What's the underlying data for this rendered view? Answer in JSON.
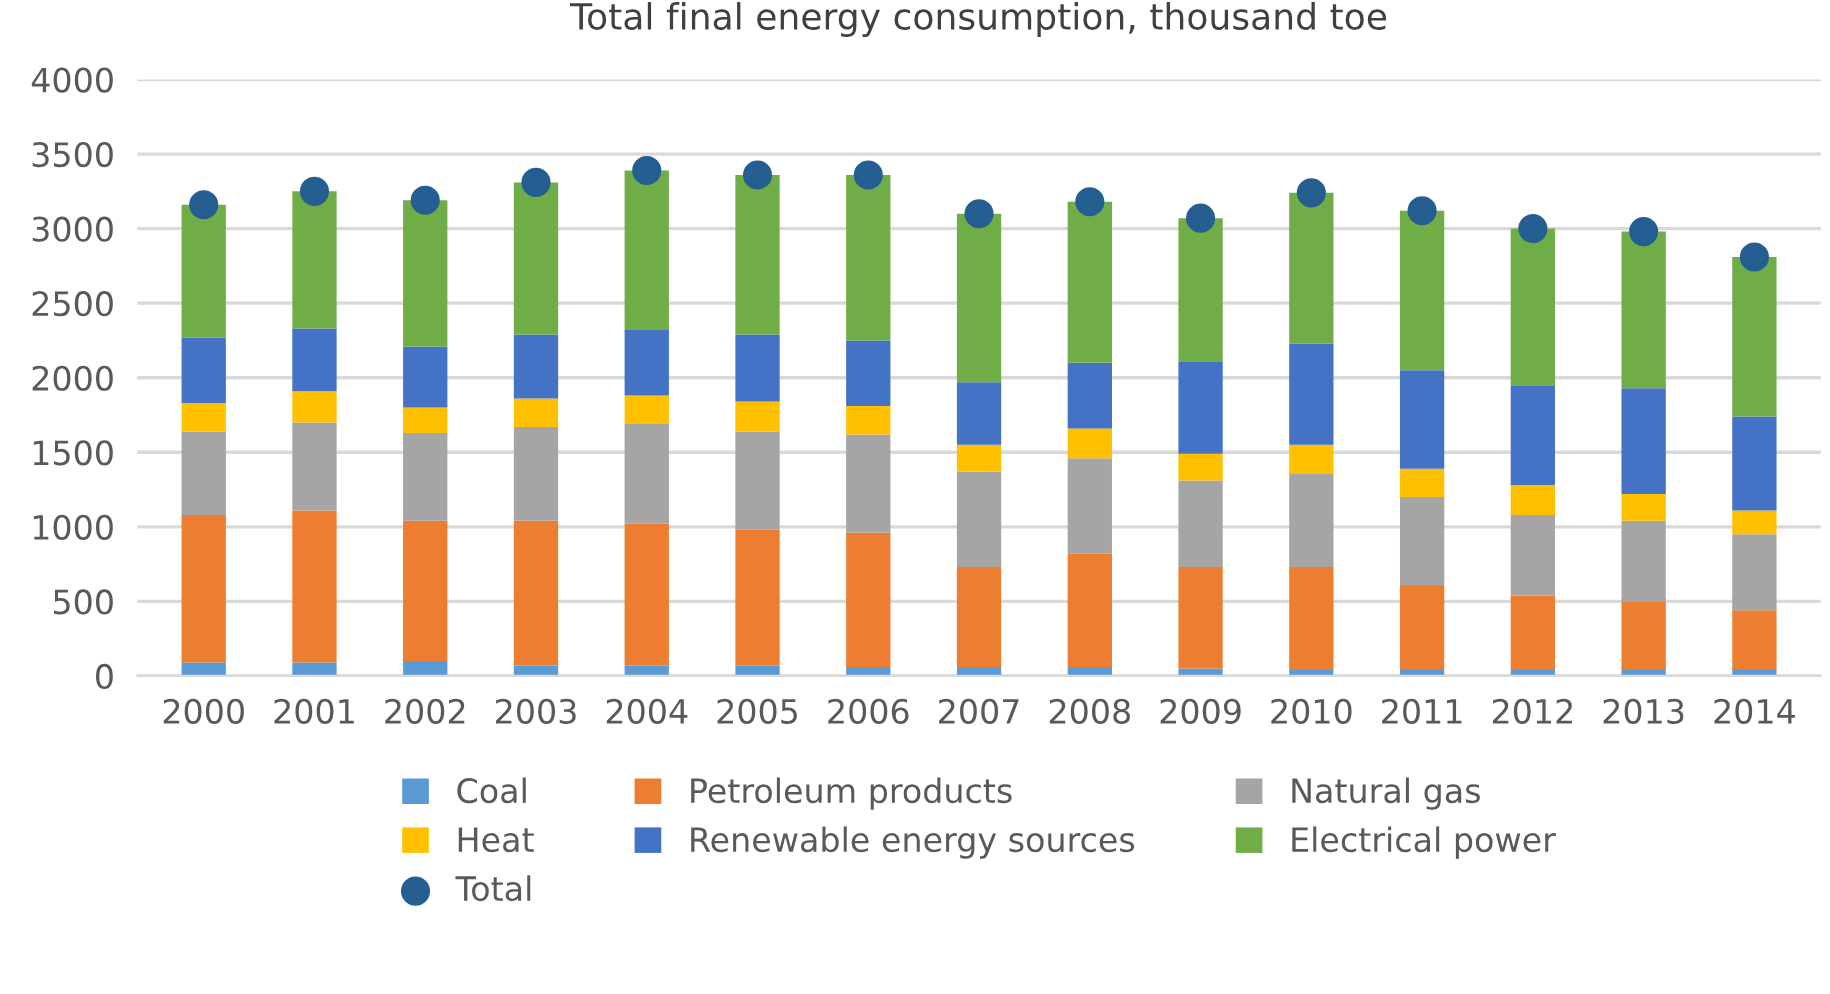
{
  "chart_data": {
    "type": "bar",
    "title": "Total final energy consumption, thousand toe",
    "stacked": true,
    "categories": [
      "2000",
      "2001",
      "2002",
      "2003",
      "2004",
      "2005",
      "2006",
      "2007",
      "2008",
      "2009",
      "2010",
      "2011",
      "2012",
      "2013",
      "2014"
    ],
    "series": [
      {
        "name": "Coal",
        "color": "#5b9bd5",
        "values": [
          90,
          90,
          100,
          70,
          70,
          70,
          60,
          60,
          60,
          50,
          40,
          40,
          40,
          40,
          40
        ]
      },
      {
        "name": "Petroleum products",
        "color": "#ed7d31",
        "values": [
          990,
          1020,
          940,
          970,
          950,
          910,
          900,
          670,
          760,
          680,
          690,
          570,
          500,
          460,
          400
        ]
      },
      {
        "name": "Natural gas",
        "color": "#a5a5a5",
        "values": [
          560,
          590,
          590,
          630,
          670,
          660,
          660,
          640,
          640,
          580,
          630,
          590,
          540,
          540,
          510
        ]
      },
      {
        "name": "Heat",
        "color": "#ffc000",
        "values": [
          190,
          210,
          170,
          190,
          190,
          200,
          190,
          180,
          200,
          180,
          190,
          190,
          200,
          180,
          160
        ]
      },
      {
        "name": "Renewable energy sources",
        "color": "#4472c4",
        "values": [
          440,
          420,
          410,
          430,
          440,
          450,
          440,
          420,
          440,
          620,
          680,
          660,
          670,
          710,
          630
        ]
      },
      {
        "name": "Electrical power",
        "color": "#70ad47",
        "values": [
          890,
          920,
          980,
          1020,
          1070,
          1070,
          1110,
          1130,
          1080,
          960,
          1010,
          1070,
          1050,
          1050,
          1070
        ]
      },
      {
        "name": "Total",
        "type": "scatter",
        "color": "#255e91",
        "values": [
          3160,
          3250,
          3190,
          3310,
          3390,
          3360,
          3360,
          3100,
          3180,
          3070,
          3240,
          3120,
          3000,
          2980,
          2810
        ]
      }
    ],
    "ylim": [
      0,
      4000
    ],
    "yticks": [
      0,
      500,
      1000,
      1500,
      2000,
      2500,
      3000,
      3500,
      4000
    ],
    "grid": "y",
    "legend": "bottom",
    "marker": "circle"
  }
}
